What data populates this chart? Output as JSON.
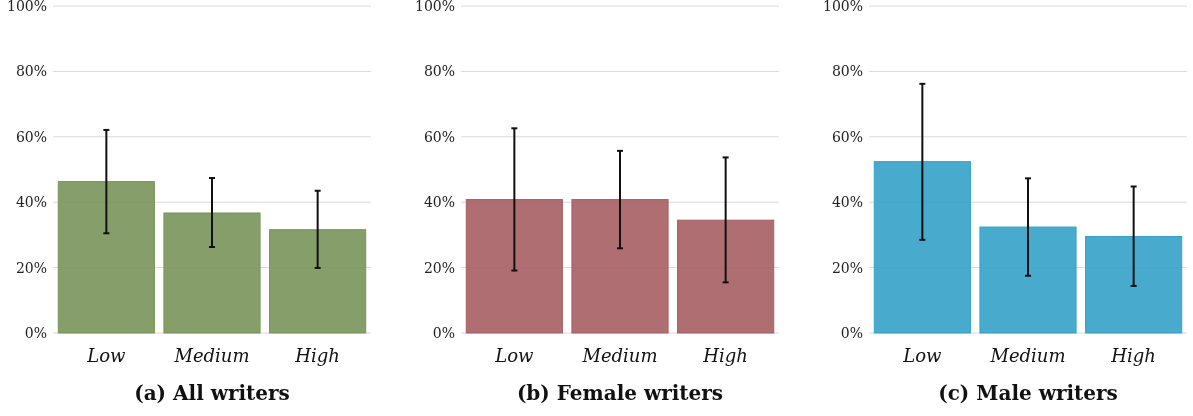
{
  "chart_data": [
    {
      "type": "bar",
      "title": "(a) All writers",
      "categories": [
        "Low",
        "Medium",
        "High"
      ],
      "values": [
        46.3,
        36.7,
        31.6
      ],
      "color": "#78945a",
      "errors": [
        [
          30.5,
          62.1
        ],
        [
          26.3,
          47.4
        ],
        [
          19.9,
          43.5
        ]
      ],
      "ylim": [
        0,
        100
      ],
      "yticks": [
        {
          "value": 0,
          "label": "0%"
        },
        {
          "value": 20,
          "label": "20%"
        },
        {
          "value": 40,
          "label": "40%"
        },
        {
          "value": 60,
          "label": "60%"
        },
        {
          "value": 80,
          "label": "80%"
        },
        {
          "value": 100,
          "label": "100%"
        }
      ],
      "grid": "y"
    },
    {
      "type": "bar",
      "title": "(b) Female writers",
      "categories": [
        "Low",
        "Medium",
        "High"
      ],
      "values": [
        40.8,
        40.8,
        34.5
      ],
      "color": "#a65e62",
      "errors": [
        [
          19.1,
          62.6
        ],
        [
          25.9,
          55.7
        ],
        [
          15.5,
          53.7
        ]
      ],
      "ylim": [
        0,
        100
      ],
      "yticks": [
        {
          "value": 0,
          "label": "0%"
        },
        {
          "value": 20,
          "label": "20%"
        },
        {
          "value": 40,
          "label": "40%"
        },
        {
          "value": 60,
          "label": "60%"
        },
        {
          "value": 80,
          "label": "80%"
        },
        {
          "value": 100,
          "label": "100%"
        }
      ],
      "grid": "y"
    },
    {
      "type": "bar",
      "title": "(c) Male writers",
      "categories": [
        "Low",
        "Medium",
        "High"
      ],
      "values": [
        52.4,
        32.4,
        29.5
      ],
      "color": "#34a2c9",
      "errors": [
        [
          28.5,
          76.2
        ],
        [
          17.5,
          47.3
        ],
        [
          14.4,
          44.8
        ]
      ],
      "ylim": [
        0,
        100
      ],
      "yticks": [
        {
          "value": 0,
          "label": "0%"
        },
        {
          "value": 20,
          "label": "20%"
        },
        {
          "value": 40,
          "label": "40%"
        },
        {
          "value": 60,
          "label": "60%"
        },
        {
          "value": 80,
          "label": "80%"
        },
        {
          "value": 100,
          "label": "100%"
        }
      ],
      "grid": "y"
    }
  ]
}
